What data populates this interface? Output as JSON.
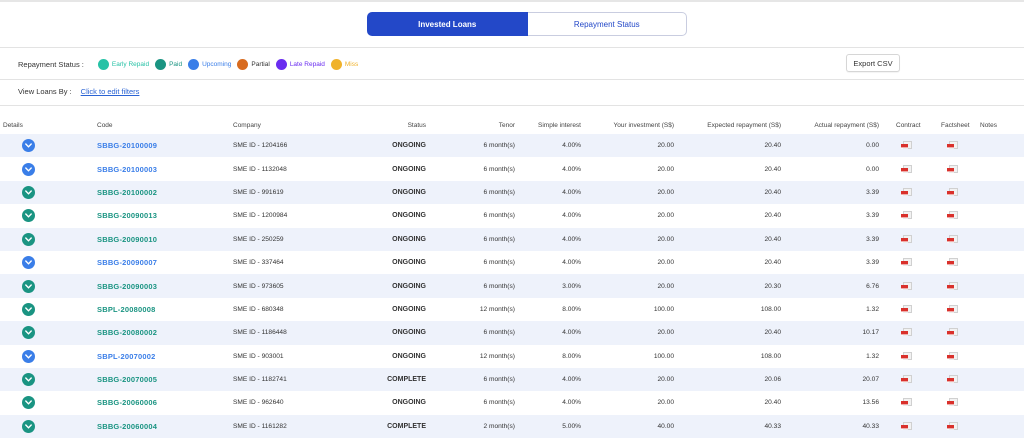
{
  "tabs": [
    {
      "label": "Invested Loans",
      "active": true
    },
    {
      "label": "Repayment Status",
      "active": false
    }
  ],
  "repayment_status": {
    "label": "Repayment Status :",
    "legend": [
      {
        "label": "Early Repaid",
        "color": "#27c2a6"
      },
      {
        "label": "Paid",
        "color": "#1a9482"
      },
      {
        "label": "Upcoming",
        "color": "#3a7ee8"
      },
      {
        "label": "Partial",
        "color": "#d86b1f"
      },
      {
        "label": "Late Repaid",
        "color": "#6a2df0"
      },
      {
        "label": "Miss",
        "color": "#f0b22b"
      }
    ]
  },
  "export_label": "Export CSV",
  "filters": {
    "label": "View Loans By :",
    "link": "Click to edit filters"
  },
  "columns": [
    "Details",
    "Code",
    "Company",
    "Status",
    "Tenor",
    "Simple interest",
    "Your investment (S$)",
    "Expected repayment (S$)",
    "Actual repayment (S$)",
    "Contract",
    "Factsheet",
    "Notes"
  ],
  "rows": [
    {
      "code": "SBBG-20100009",
      "company": "SME ID - 1204166",
      "status": "ONGOING",
      "tenor": "6 month(s)",
      "interest": "4.00%",
      "investment": "20.00",
      "expected": "20.40",
      "actual": "0.00",
      "color": "#3a7ee8"
    },
    {
      "code": "SBBG-20100003",
      "company": "SME ID - 1132048",
      "status": "ONGOING",
      "tenor": "6 month(s)",
      "interest": "4.00%",
      "investment": "20.00",
      "expected": "20.40",
      "actual": "0.00",
      "color": "#3a7ee8"
    },
    {
      "code": "SBBG-20100002",
      "company": "SME ID - 991619",
      "status": "ONGOING",
      "tenor": "6 month(s)",
      "interest": "4.00%",
      "investment": "20.00",
      "expected": "20.40",
      "actual": "3.39",
      "color": "#1a9482"
    },
    {
      "code": "SBBG-20090013",
      "company": "SME ID - 1200984",
      "status": "ONGOING",
      "tenor": "6 month(s)",
      "interest": "4.00%",
      "investment": "20.00",
      "expected": "20.40",
      "actual": "3.39",
      "color": "#1a9482"
    },
    {
      "code": "SBBG-20090010",
      "company": "SME ID - 250259",
      "status": "ONGOING",
      "tenor": "6 month(s)",
      "interest": "4.00%",
      "investment": "20.00",
      "expected": "20.40",
      "actual": "3.39",
      "color": "#1a9482"
    },
    {
      "code": "SBBG-20090007",
      "company": "SME ID - 337464",
      "status": "ONGOING",
      "tenor": "6 month(s)",
      "interest": "4.00%",
      "investment": "20.00",
      "expected": "20.40",
      "actual": "3.39",
      "color": "#3a7ee8"
    },
    {
      "code": "SBBG-20090003",
      "company": "SME ID - 973605",
      "status": "ONGOING",
      "tenor": "6 month(s)",
      "interest": "3.00%",
      "investment": "20.00",
      "expected": "20.30",
      "actual": "6.76",
      "color": "#1a9482"
    },
    {
      "code": "SBPL-20080008",
      "company": "SME ID - 680348",
      "status": "ONGOING",
      "tenor": "12 month(s)",
      "interest": "8.00%",
      "investment": "100.00",
      "expected": "108.00",
      "actual": "1.32",
      "color": "#1a9482"
    },
    {
      "code": "SBBG-20080002",
      "company": "SME ID - 1186448",
      "status": "ONGOING",
      "tenor": "6 month(s)",
      "interest": "4.00%",
      "investment": "20.00",
      "expected": "20.40",
      "actual": "10.17",
      "color": "#1a9482"
    },
    {
      "code": "SBPL-20070002",
      "company": "SME ID - 903001",
      "status": "ONGOING",
      "tenor": "12 month(s)",
      "interest": "8.00%",
      "investment": "100.00",
      "expected": "108.00",
      "actual": "1.32",
      "color": "#3a7ee8"
    },
    {
      "code": "SBBG-20070005",
      "company": "SME ID - 1182741",
      "status": "COMPLETE",
      "tenor": "6 month(s)",
      "interest": "4.00%",
      "investment": "20.00",
      "expected": "20.06",
      "actual": "20.07",
      "color": "#1a9482"
    },
    {
      "code": "SBBG-20060006",
      "company": "SME ID - 962640",
      "status": "ONGOING",
      "tenor": "6 month(s)",
      "interest": "4.00%",
      "investment": "20.00",
      "expected": "20.40",
      "actual": "13.56",
      "color": "#1a9482"
    },
    {
      "code": "SBBG-20060004",
      "company": "SME ID - 1161282",
      "status": "COMPLETE",
      "tenor": "2 month(s)",
      "interest": "5.00%",
      "investment": "40.00",
      "expected": "40.33",
      "actual": "40.33",
      "color": "#1a9482"
    }
  ]
}
